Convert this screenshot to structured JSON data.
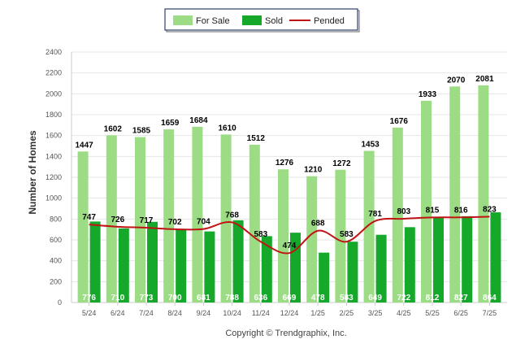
{
  "chart_data": {
    "type": "bar",
    "ylabel": "Number of Homes",
    "ylim": [
      0,
      2400
    ],
    "yticks": [
      0,
      200,
      400,
      600,
      800,
      1000,
      1200,
      1400,
      1600,
      1800,
      2000,
      2200,
      2400
    ],
    "grid": true,
    "legend_position": "top-center",
    "categories": [
      "5/24",
      "6/24",
      "7/24",
      "8/24",
      "9/24",
      "10/24",
      "11/24",
      "12/24",
      "1/25",
      "2/25",
      "3/25",
      "4/25",
      "5/25",
      "6/25",
      "7/25"
    ],
    "series": [
      {
        "name": "For Sale",
        "kind": "bar",
        "color": "#9cdc84",
        "values": [
          1447,
          1602,
          1585,
          1659,
          1684,
          1610,
          1512,
          1276,
          1210,
          1272,
          1453,
          1676,
          1933,
          2070,
          2081
        ]
      },
      {
        "name": "Sold",
        "kind": "bar",
        "color": "#15a82a",
        "values": [
          776,
          710,
          773,
          700,
          681,
          788,
          636,
          669,
          478,
          583,
          649,
          722,
          812,
          827,
          864
        ]
      },
      {
        "name": "Pended",
        "kind": "line",
        "color": "#c01414",
        "values": [
          747,
          726,
          717,
          702,
          704,
          768,
          583,
          474,
          688,
          583,
          781,
          803,
          815,
          816,
          823
        ]
      }
    ]
  },
  "copyright": "Copyright © Trendgraphix, Inc."
}
